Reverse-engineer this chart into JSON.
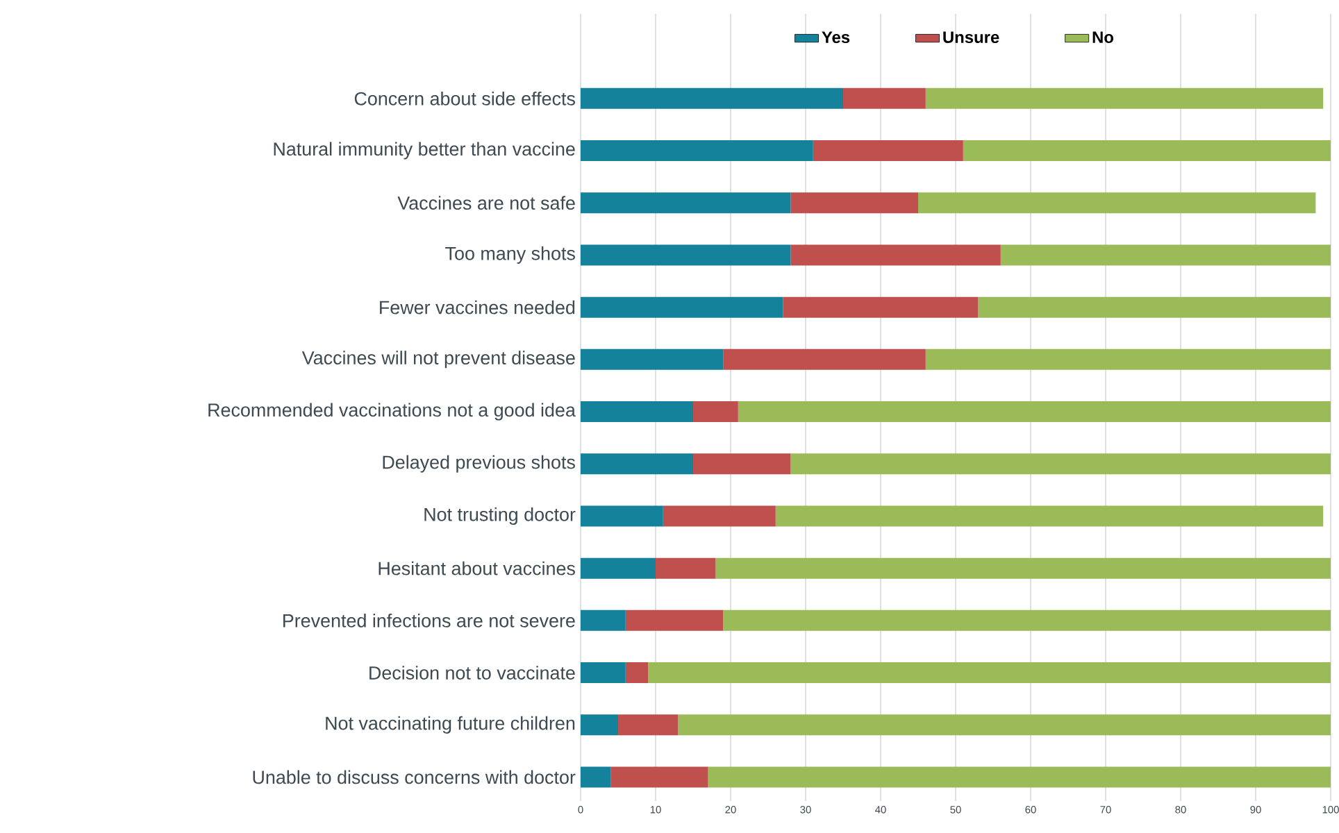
{
  "chart_data": {
    "type": "bar",
    "orientation": "horizontal",
    "stacked": true,
    "categories": [
      "Concern about side effects",
      "Natural immunity better than vaccine",
      "Vaccines are not safe",
      "Too many shots",
      "Fewer vaccines needed",
      "Vaccines will not prevent disease",
      "Recommended vaccinations not a good idea",
      "Delayed previous shots",
      "Not trusting doctor",
      "Hesitant about vaccines",
      "Prevented infections are not severe",
      "Decision not to vaccinate",
      "Not vaccinating future children",
      "Unable to discuss concerns with doctor"
    ],
    "series": [
      {
        "name": "Yes",
        "color": "#13829a",
        "values": [
          35,
          31,
          28,
          28,
          27,
          19,
          15,
          15,
          11,
          10,
          6,
          6,
          5,
          4
        ]
      },
      {
        "name": "Unsure",
        "color": "#c0504d",
        "values": [
          11,
          20,
          17,
          28,
          26,
          27,
          6,
          13,
          15,
          8,
          13,
          3,
          8,
          13
        ]
      },
      {
        "name": "No",
        "color": "#9bbb59",
        "values": [
          53,
          49,
          53,
          44,
          47,
          54,
          79,
          72,
          73,
          82,
          81,
          91,
          87,
          83
        ]
      }
    ],
    "xlim": [
      0,
      100
    ],
    "xticks": [
      0,
      10,
      20,
      30,
      40,
      50,
      60,
      70,
      80,
      90,
      100
    ],
    "grid": "x",
    "legend": "top"
  }
}
